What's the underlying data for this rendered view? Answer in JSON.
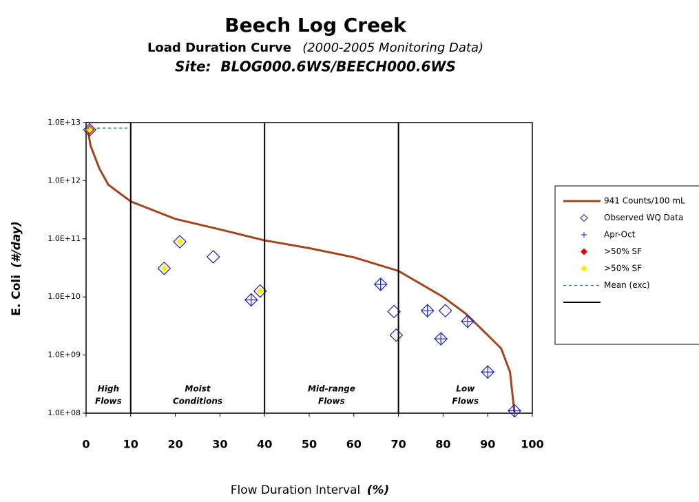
{
  "chart_data": {
    "type": "scatter",
    "title": "Beech Log Creek",
    "subtitle": "Load Duration Curve",
    "subtitle_note": "(2000-2005 Monitoring Data)",
    "site": "Site:  BLOG000.6WS/BEECH000.6WS",
    "x_label": "Flow Duration Interval",
    "x_label_unit": "(%)",
    "y_label": "E. Coli",
    "y_label_unit": "(#/day)",
    "log_y": true,
    "xlim": [
      0,
      100
    ],
    "xticks": [
      0,
      10,
      20,
      30,
      40,
      50,
      60,
      70,
      80,
      90,
      100
    ],
    "ylim": [
      100000000,
      10000000000000
    ],
    "yticks": [
      {
        "value": 100000000,
        "label": "1.0E+08"
      },
      {
        "value": 1000000000,
        "label": "1.0E+09"
      },
      {
        "value": 10000000000,
        "label": "1.0E+10"
      },
      {
        "value": 100000000000,
        "label": "1.0E+11"
      },
      {
        "value": 1000000000000,
        "label": "1.0E+12"
      },
      {
        "value": 10000000000000,
        "label": "1.0E+13"
      }
    ],
    "zones": [
      [
        "High",
        "Flows"
      ],
      [
        "Moist",
        "Conditions"
      ],
      [
        "Mid-range",
        "Flows"
      ],
      [
        "Low",
        "Flows"
      ]
    ],
    "series": [
      {
        "name": "941 Counts/100 mL",
        "color": "#a0461e",
        "marker": "line",
        "x": [
          0.3,
          1,
          3,
          5,
          10,
          20,
          30,
          40,
          50,
          60,
          70,
          80,
          85,
          90,
          93,
          95,
          96
        ],
        "values": [
          8300000000000,
          4000000000000,
          1600000000000,
          850000000000,
          440000000000,
          220000000000,
          145000000000,
          94000000000,
          69000000000,
          48000000000,
          28000000000,
          10000000000,
          5200000000,
          2200000000,
          1300000000,
          510000000,
          100000000
        ]
      },
      {
        "name": "Observed WQ Data",
        "color": "#1f1fb4",
        "marker": "diamond",
        "x": [
          0.8,
          17.5,
          21,
          28.5,
          37,
          39,
          66,
          69,
          69.5,
          76.5,
          80.5,
          79.5,
          85.5,
          90,
          96
        ],
        "values": [
          7500000000000,
          31000000000,
          89000000000,
          49000000000,
          8900000000,
          12600000000,
          16500000000,
          5600000000,
          2200000000,
          5800000000,
          5800000000,
          1900000000,
          3800000000,
          510000000,
          110000000
        ]
      },
      {
        "name": "Apr-Oct",
        "color": "#1f1fb4",
        "marker": "plus",
        "x": [
          37,
          66,
          76.5,
          79.5,
          85.5,
          90,
          96
        ],
        "values": [
          8900000000,
          16500000000,
          5800000000,
          1900000000,
          3800000000,
          510000000,
          110000000
        ]
      },
      {
        "name": ">50% SF",
        "color": "#e00000",
        "marker": "filled",
        "x": [
          0.8
        ],
        "values": [
          7500000000000
        ]
      },
      {
        "name": ">50% SF",
        "color": "#ffee00",
        "marker": "filled",
        "x": [
          0.8,
          17.5,
          21,
          39
        ],
        "values": [
          7500000000000,
          31000000000,
          89000000000,
          12600000000
        ]
      },
      {
        "name": "Mean (exc)",
        "color": "#3a9a8a",
        "marker": "dashed",
        "x": [
          0,
          10
        ],
        "values": [
          8000000000000,
          8000000000000
        ]
      },
      {
        "name": null,
        "color": "#000000",
        "marker": "vline",
        "x": [
          10,
          40,
          70
        ]
      }
    ]
  }
}
